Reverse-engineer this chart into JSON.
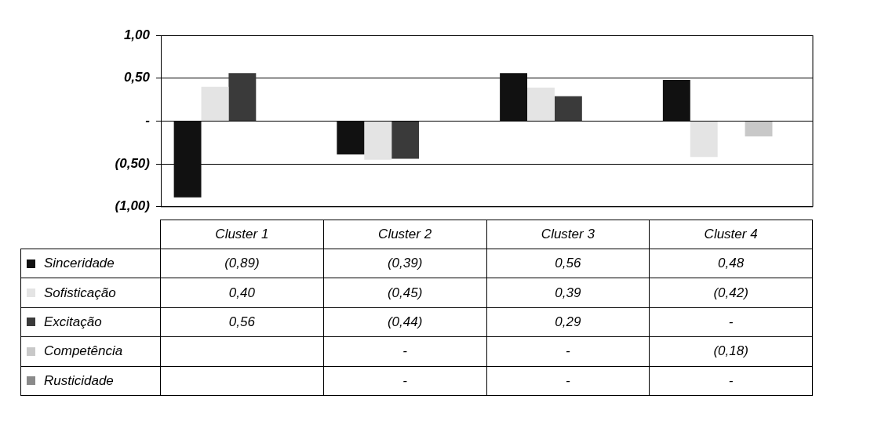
{
  "chart_data": {
    "type": "bar",
    "categories": [
      "Cluster 1",
      "Cluster 2",
      "Cluster 3",
      "Cluster 4"
    ],
    "series": [
      {
        "name": "Sinceridade",
        "color": "#111111",
        "values": [
          -0.89,
          -0.39,
          0.56,
          0.48
        ],
        "value_labels": [
          "(0,89)",
          "(0,39)",
          "0,56",
          "0,48"
        ]
      },
      {
        "name": "Sofisticação",
        "color": "#e4e4e4",
        "values": [
          0.4,
          -0.45,
          0.39,
          -0.42
        ],
        "value_labels": [
          "0,40",
          "(0,45)",
          "0,39",
          "(0,42)"
        ]
      },
      {
        "name": "Excitação",
        "color": "#3a3a3a",
        "values": [
          0.56,
          -0.44,
          0.29,
          0
        ],
        "value_labels": [
          "0,56",
          "(0,44)",
          "0,29",
          "-"
        ]
      },
      {
        "name": "Competência",
        "color": "#c8c8c8",
        "values": [
          null,
          0,
          0,
          -0.18
        ],
        "value_labels": [
          null,
          "-",
          "-",
          "(0,18)"
        ]
      },
      {
        "name": "Rusticidade",
        "color": "#8a8a8a",
        "values": [
          null,
          0,
          0,
          0
        ],
        "value_labels": [
          null,
          "-",
          "-",
          "-"
        ]
      }
    ],
    "ylim": [
      -1,
      1
    ],
    "yticks": [
      {
        "value": 1,
        "label": "1,00"
      },
      {
        "value": 0.5,
        "label": "0,50"
      },
      {
        "value": 0,
        "label": "-"
      },
      {
        "value": -0.5,
        "label": "(0,50)"
      },
      {
        "value": -1,
        "label": "(1,00)"
      }
    ],
    "grid": "y",
    "legend": "bottom"
  }
}
